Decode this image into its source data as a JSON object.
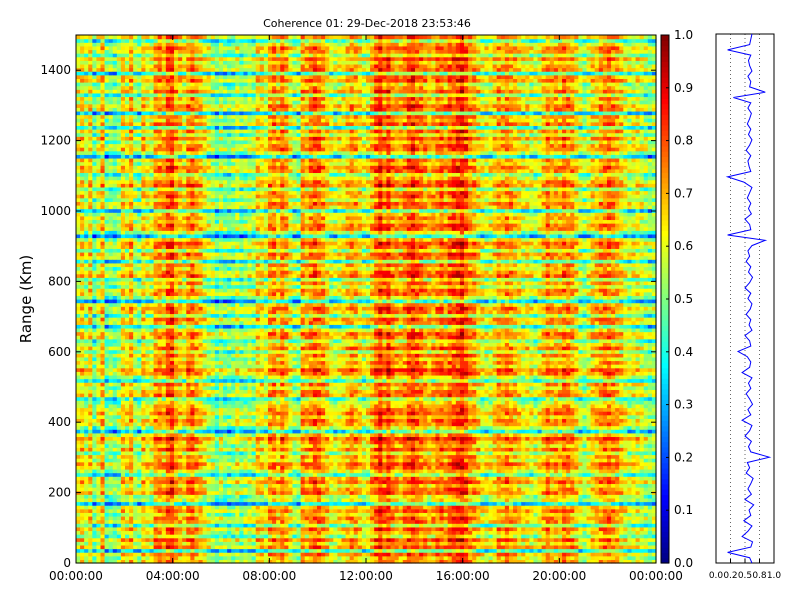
{
  "chart_data": [
    {
      "type": "heatmap",
      "title": "Coherence 01: 29-Dec-2018 23:53:46",
      "xlabel": "",
      "ylabel": "Range (Km)",
      "x_tick_labels": [
        "00:00:00",
        "04:00:00",
        "08:00:00",
        "12:00:00",
        "16:00:00",
        "20:00:00",
        "00:00:00"
      ],
      "x_tick_hours": [
        0,
        4,
        8,
        12,
        16,
        20,
        24
      ],
      "y_ticks": [
        0,
        200,
        400,
        600,
        800,
        1000,
        1200,
        1400
      ],
      "ylim": [
        0,
        1500
      ],
      "xlim_hours": [
        0,
        24
      ],
      "colormap": "jet",
      "colorbar": {
        "range": [
          0.0,
          1.0
        ],
        "ticks": [
          "0.0",
          "0.1",
          "0.2",
          "0.3",
          "0.4",
          "0.5",
          "0.6",
          "0.7",
          "0.8",
          "0.9",
          "1.0"
        ]
      },
      "time_bin_means": [
        0.62,
        0.66,
        0.58,
        0.66,
        0.5,
        0.6,
        0.7,
        0.5,
        0.52,
        0.5,
        0.54,
        0.66,
        0.62,
        0.7,
        0.56,
        0.52,
        0.66,
        0.62,
        0.6,
        0.72,
        0.74,
        0.7,
        0.8,
        0.82,
        0.72,
        0.68,
        0.64,
        0.74,
        0.76,
        0.7,
        0.68,
        0.62,
        0.58,
        0.55,
        0.5,
        0.56,
        0.52,
        0.5,
        0.52,
        0.58,
        0.52,
        0.54,
        0.56,
        0.55,
        0.66,
        0.64,
        0.6,
        0.72,
        0.74,
        0.68,
        0.76,
        0.7,
        0.62,
        0.56,
        0.54,
        0.72,
        0.7,
        0.74,
        0.78,
        0.76,
        0.72,
        0.66,
        0.6,
        0.58,
        0.62,
        0.64,
        0.68,
        0.72,
        0.7,
        0.66,
        0.6,
        0.62,
        0.7,
        0.78,
        0.84,
        0.76,
        0.82,
        0.74,
        0.72,
        0.7,
        0.74,
        0.8,
        0.82,
        0.78,
        0.76,
        0.72,
        0.68,
        0.7,
        0.74,
        0.76,
        0.72,
        0.78,
        0.8,
        0.82,
        0.86,
        0.8,
        0.74,
        0.72,
        0.66,
        0.62,
        0.6,
        0.62,
        0.66,
        0.72,
        0.7,
        0.74,
        0.72,
        0.68,
        0.66,
        0.62,
        0.64,
        0.6,
        0.58,
        0.62,
        0.68,
        0.74,
        0.7,
        0.72,
        0.7,
        0.76,
        0.74,
        0.72,
        0.66,
        0.58,
        0.54,
        0.6,
        0.66,
        0.68,
        0.72,
        0.74,
        0.76,
        0.72,
        0.7,
        0.66,
        0.62,
        0.58,
        0.6,
        0.62,
        0.58,
        0.56,
        0.52,
        0.55
      ],
      "range_gate_offsets": [
        0.0,
        -0.05,
        0.04,
        -0.25,
        0.06,
        -0.04,
        0.08,
        -0.12,
        -0.02,
        0.05,
        -0.18,
        0.02,
        0.04,
        -0.05,
        0.06,
        0.0,
        -0.3,
        -0.08,
        -0.1,
        0.06,
        0.03,
        -0.05,
        0.08,
        0.02,
        -0.2,
        -0.06,
        0.04,
        0.08,
        -0.04,
        0.02,
        -0.1,
        0.06,
        -0.05,
        0.02,
        0.1,
        -0.03,
        -0.28,
        -0.1,
        0.02,
        0.04,
        -0.05,
        0.06,
        0.02,
        -0.04,
        -0.1,
        -0.2,
        0.05,
        0.02,
        -0.06,
        0.04,
        -0.22,
        -0.08,
        0.06,
        0.1,
        -0.04,
        0.02,
        -0.06,
        0.04,
        -0.12,
        0.06,
        -0.03,
        -0.14,
        0.04,
        0.06,
        -0.05,
        -0.24,
        0.02,
        0.05,
        -0.16,
        0.02,
        0.06,
        -0.02,
        -0.3,
        -0.1,
        0.03,
        0.04,
        -0.1,
        0.02,
        -0.14,
        0.08,
        0.04,
        -0.06,
        0.02,
        -0.22,
        0.02,
        0.06,
        -0.12,
        0.04,
        0.07,
        -0.04,
        -0.32,
        -0.12,
        0.03,
        0.05,
        -0.06,
        0.02,
        -0.04,
        -0.26,
        0.02,
        0.06,
        -0.08,
        0.04,
        0.02,
        -0.14,
        0.08,
        0.03,
        -0.05,
        -0.16,
        0.04,
        0.06,
        -0.04,
        0.02,
        -0.3,
        -0.08,
        0.05,
        0.03,
        -0.06,
        0.07,
        -0.1,
        0.04,
        -0.22,
        0.06,
        -0.04,
        0.02,
        -0.28,
        0.04,
        0.06,
        -0.05,
        0.02,
        -0.18,
        0.05,
        -0.03,
        -0.1,
        0.06,
        0.03,
        -0.24,
        0.04,
        0.02,
        -0.06,
        0.06,
        -0.12,
        0.02,
        0.05,
        -0.04,
        -0.2,
        0.03
      ],
      "profile_panel": {
        "type": "line",
        "x_tick_labels": [
          "0.0",
          "0.2",
          "0.5",
          "0.8",
          "1.0"
        ],
        "x_ticks": [
          0.0,
          0.25,
          0.5,
          0.75,
          1.0
        ],
        "xlim": [
          0.0,
          1.0
        ],
        "ylim": [
          0,
          1500
        ],
        "range_km": [
          0,
          15,
          30,
          45,
          60,
          75,
          90,
          105,
          120,
          135,
          150,
          165,
          180,
          195,
          210,
          225,
          240,
          255,
          270,
          285,
          300,
          315,
          330,
          345,
          360,
          375,
          390,
          405,
          420,
          435,
          450,
          465,
          480,
          495,
          510,
          525,
          540,
          555,
          570,
          585,
          600,
          615,
          630,
          645,
          660,
          675,
          690,
          705,
          720,
          735,
          750,
          765,
          780,
          795,
          810,
          825,
          840,
          855,
          870,
          885,
          900,
          915,
          930,
          945,
          960,
          975,
          990,
          1005,
          1020,
          1035,
          1050,
          1065,
          1080,
          1095,
          1110,
          1125,
          1140,
          1155,
          1170,
          1185,
          1200,
          1215,
          1230,
          1245,
          1260,
          1275,
          1290,
          1305,
          1320,
          1335,
          1350,
          1365,
          1380,
          1395,
          1410,
          1425,
          1440,
          1455,
          1470,
          1485,
          1500
        ],
        "coherence": [
          0.62,
          0.58,
          0.2,
          0.6,
          0.63,
          0.45,
          0.55,
          0.62,
          0.48,
          0.6,
          0.57,
          0.65,
          0.5,
          0.61,
          0.55,
          0.6,
          0.64,
          0.52,
          0.58,
          0.54,
          0.92,
          0.6,
          0.56,
          0.61,
          0.5,
          0.58,
          0.62,
          0.45,
          0.6,
          0.55,
          0.63,
          0.58,
          0.52,
          0.6,
          0.56,
          0.62,
          0.45,
          0.58,
          0.6,
          0.54,
          0.38,
          0.6,
          0.58,
          0.5,
          0.62,
          0.57,
          0.6,
          0.52,
          0.59,
          0.62,
          0.55,
          0.6,
          0.5,
          0.58,
          0.63,
          0.56,
          0.6,
          0.52,
          0.58,
          0.55,
          0.62,
          0.85,
          0.2,
          0.6,
          0.58,
          0.5,
          0.61,
          0.56,
          0.6,
          0.54,
          0.58,
          0.62,
          0.48,
          0.2,
          0.6,
          0.57,
          0.55,
          0.6,
          0.52,
          0.58,
          0.62,
          0.56,
          0.6,
          0.54,
          0.58,
          0.61,
          0.55,
          0.6,
          0.3,
          0.85,
          0.58,
          0.6,
          0.55,
          0.62,
          0.58,
          0.56,
          0.6,
          0.2,
          0.58,
          0.6,
          0.62
        ]
      }
    }
  ]
}
